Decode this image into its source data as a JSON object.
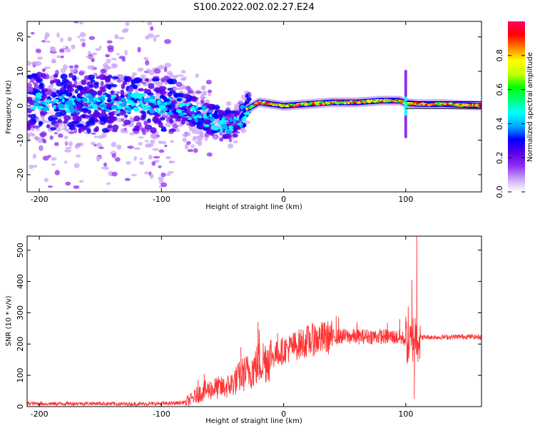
{
  "title": "S100.2022.002.02.27.E24",
  "chart_data": [
    {
      "type": "heatmap",
      "xlabel": "Height of straight line (km)",
      "ylabel": "Frequency (Hz)",
      "xlim": [
        -210,
        162
      ],
      "ylim": [
        -25,
        24.5
      ],
      "xticks": [
        -200,
        -100,
        0,
        100
      ],
      "yticks": [
        -20,
        -10,
        0,
        10,
        20
      ],
      "colorbar": {
        "label": "Normalized spectral amplitude",
        "range": [
          0,
          1
        ],
        "ticks": [
          0.0,
          0.2,
          0.4,
          0.6,
          0.8
        ],
        "tick_labels": [
          "0.0",
          "0.2",
          "0.4",
          "0.6",
          "0.8"
        ],
        "stops": [
          "#ffffff",
          "#c9a3f5",
          "#8c2df0",
          "#5a00e6",
          "#0000ff",
          "#00aaff",
          "#00ffff",
          "#00ff80",
          "#00ff00",
          "#c8ff00",
          "#ffff00",
          "#ff8000",
          "#ff0000",
          "#ff0066"
        ]
      },
      "ridge": {
        "x": [
          -210,
          -180,
          -150,
          -120,
          -100,
          -85,
          -70,
          -60,
          -50,
          -42,
          -35,
          -30,
          -20,
          -10,
          0,
          20,
          40,
          60,
          80,
          95,
          100,
          110,
          130,
          150,
          162
        ],
        "freq": [
          1.5,
          1.0,
          0.5,
          1.0,
          0.5,
          -0.5,
          -2.0,
          -4.0,
          -5.0,
          -5.5,
          -3.5,
          -1.0,
          1.0,
          0.5,
          0.0,
          0.5,
          1.0,
          1.0,
          1.5,
          1.5,
          0.8,
          0.5,
          0.5,
          0.2,
          0.0
        ]
      }
    },
    {
      "type": "line",
      "xlabel": "Height of straight line (km)",
      "ylabel": "SNR (10 * v/v)",
      "xlim": [
        -210,
        162
      ],
      "ylim": [
        0,
        545
      ],
      "xticks": [
        -200,
        -100,
        0,
        100
      ],
      "yticks": [
        0,
        100,
        200,
        300,
        400,
        500
      ],
      "color": "#ff3333",
      "x": [
        -210,
        -190,
        -170,
        -150,
        -130,
        -110,
        -95,
        -85,
        -80,
        -75,
        -70,
        -65,
        -60,
        -55,
        -50,
        -45,
        -40,
        -35,
        -30,
        -25,
        -20,
        -15,
        -10,
        -5,
        0,
        10,
        20,
        30,
        40,
        50,
        60,
        70,
        80,
        90,
        95,
        100,
        103,
        105,
        107,
        108,
        110,
        115,
        130,
        150,
        162
      ],
      "y": [
        10,
        9,
        10,
        10,
        8,
        9,
        10,
        12,
        15,
        25,
        40,
        50,
        55,
        60,
        60,
        65,
        80,
        100,
        110,
        120,
        140,
        150,
        160,
        170,
        180,
        195,
        210,
        218,
        222,
        225,
        223,
        225,
        224,
        223,
        220,
        215,
        200,
        200,
        240,
        230,
        220,
        222,
        222,
        224,
        222
      ],
      "spikes": [
        {
          "x": -70,
          "y": 85
        },
        {
          "x": -65,
          "y": 105
        },
        {
          "x": -40,
          "y": 115
        },
        {
          "x": -35,
          "y": 190
        },
        {
          "x": -21,
          "y": 270
        },
        {
          "x": -20,
          "y": 245
        },
        {
          "x": -5,
          "y": 235
        },
        {
          "x": 25,
          "y": 260
        },
        {
          "x": 43,
          "y": 290
        },
        {
          "x": 45,
          "y": 285
        },
        {
          "x": 60,
          "y": 270
        },
        {
          "x": 85,
          "y": 268
        },
        {
          "x": 95,
          "y": 280
        },
        {
          "x": 102,
          "y": 320
        },
        {
          "x": 105,
          "y": 405
        },
        {
          "x": 107,
          "y": 25
        },
        {
          "x": 109,
          "y": 545
        }
      ]
    }
  ]
}
